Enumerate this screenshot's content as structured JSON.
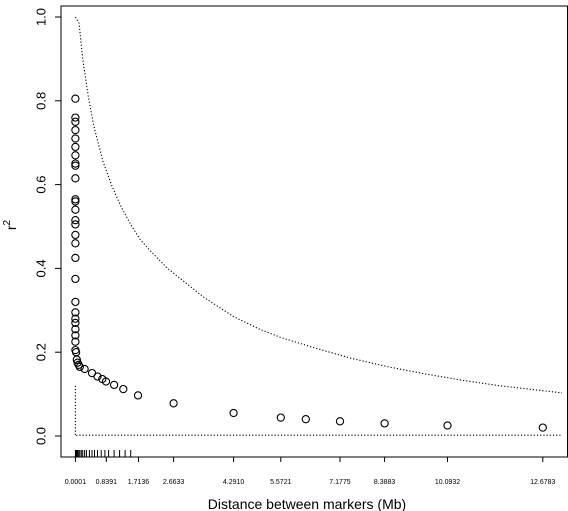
{
  "chart_data": {
    "type": "scatter",
    "xlabel": "Distance between markers (Mb)",
    "ylabel": "r²",
    "ylabel_base": "r",
    "ylabel_sup": "2",
    "xlim": [
      -0.2,
      13.2
    ],
    "ylim": [
      0,
      1.0
    ],
    "y_ticks": [
      0.0,
      0.2,
      0.4,
      0.6,
      0.8,
      1.0
    ],
    "y_tick_labels": [
      "0.0",
      "0.2",
      "0.4",
      "0.6",
      "0.8",
      "1.0"
    ],
    "x_ticks": [
      0.0001,
      0.8391,
      1.7136,
      2.6633,
      4.291,
      5.5721,
      7.1775,
      8.3883,
      10.0932,
      12.6783
    ],
    "x_tick_labels": [
      "0.0001",
      "0.8391",
      "1.7136",
      "2.6633",
      "4.2910",
      "5.5721",
      "7.1775",
      "8.3883",
      "10.0932",
      "12.6783"
    ],
    "grid": false,
    "points": {
      "x": [
        0.0001,
        0.0001,
        0.0001,
        0.0001,
        0.0001,
        0.0001,
        0.0001,
        0.0001,
        0.0001,
        0.0001,
        0.0001,
        0.0001,
        0.0001,
        0.0001,
        0.0001,
        0.0001,
        0.0001,
        0.0001,
        0.0001,
        0.0001,
        0.0001,
        0.0001,
        0.0001,
        0.0001,
        0.0001,
        0.0001,
        0.0001,
        0.02,
        0.04,
        0.06,
        0.09,
        0.12,
        0.25,
        0.45,
        0.6,
        0.73,
        0.83,
        1.05,
        1.3,
        1.7,
        2.6633,
        4.291,
        5.5721,
        6.25,
        7.1775,
        8.3883,
        10.0932,
        12.6783
      ],
      "y": [
        0.805,
        0.76,
        0.75,
        0.73,
        0.71,
        0.69,
        0.67,
        0.65,
        0.645,
        0.615,
        0.565,
        0.56,
        0.54,
        0.515,
        0.505,
        0.48,
        0.46,
        0.425,
        0.375,
        0.32,
        0.295,
        0.28,
        0.27,
        0.255,
        0.24,
        0.225,
        0.205,
        0.2,
        0.182,
        0.175,
        0.17,
        0.165,
        0.16,
        0.15,
        0.142,
        0.136,
        0.13,
        0.122,
        0.112,
        0.097,
        0.078,
        0.055,
        0.044,
        0.04,
        0.035,
        0.03,
        0.025,
        0.02
      ]
    },
    "upper_curve": {
      "x": [
        0.0001,
        0.1,
        0.2,
        0.35,
        0.5,
        0.75,
        1.0,
        1.25,
        1.5,
        1.75,
        2.0,
        2.5,
        3.0,
        3.5,
        4.291,
        5.0,
        5.5721,
        6.5,
        7.5,
        8.5,
        9.5,
        10.5,
        11.5,
        12.6783,
        13.2
      ],
      "y": [
        1.0,
        0.985,
        0.9,
        0.81,
        0.74,
        0.655,
        0.595,
        0.545,
        0.505,
        0.47,
        0.445,
        0.4,
        0.365,
        0.33,
        0.285,
        0.255,
        0.235,
        0.21,
        0.185,
        0.165,
        0.148,
        0.133,
        0.12,
        0.108,
        0.103
      ]
    },
    "lower_curve": {
      "x": [
        0.0001,
        0.0001,
        0.05,
        1.0,
        5.0,
        13.2
      ],
      "y": [
        0.12,
        0.0,
        0.002,
        0.002,
        0.002,
        0.002
      ]
    },
    "rug_x": [
      0.0001,
      0.02,
      0.04,
      0.06,
      0.09,
      0.12,
      0.16,
      0.2,
      0.25,
      0.3,
      0.38,
      0.45,
      0.52,
      0.6,
      0.7,
      0.8,
      0.9,
      1.05,
      1.2,
      1.35,
      1.5
    ]
  }
}
